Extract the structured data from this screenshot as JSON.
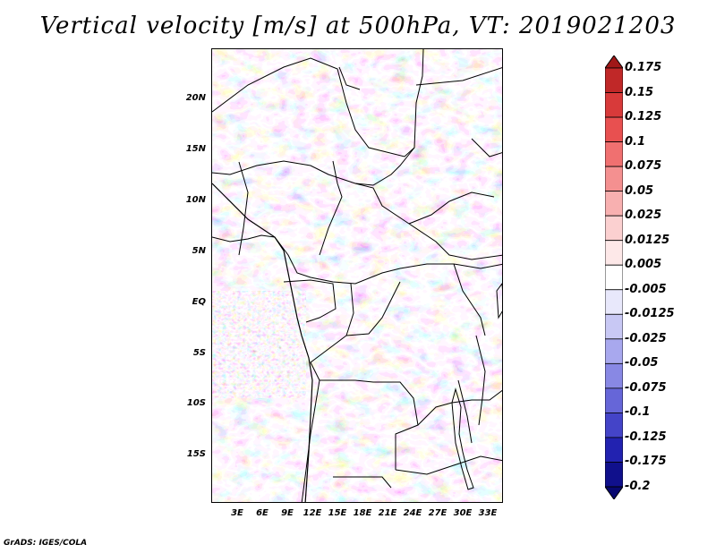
{
  "title": "Vertical velocity [m/s] at 500hPa, VT: 2019021203",
  "credit": "GrADS: IGES/COLA",
  "map": {
    "lat_labels": [
      "20N",
      "15N",
      "10N",
      "5N",
      "EQ",
      "5S",
      "10S",
      "15S"
    ],
    "lon_labels": [
      "3E",
      "6E",
      "9E",
      "12E",
      "15E",
      "18E",
      "21E",
      "24E",
      "27E",
      "30E",
      "33E"
    ]
  },
  "colorbar": {
    "levels": [
      "0.175",
      "0.15",
      "0.125",
      "0.1",
      "0.075",
      "0.05",
      "0.025",
      "0.0125",
      "0.005",
      "-0.005",
      "-0.0125",
      "-0.025",
      "-0.05",
      "-0.075",
      "-0.1",
      "-0.125",
      "-0.175",
      "-0.2"
    ],
    "colors": [
      "#a01818",
      "#c02828",
      "#d83a3a",
      "#e85050",
      "#f07070",
      "#f49090",
      "#f8b0b0",
      "#fbd0d0",
      "#fde8e8",
      "#ffffff",
      "#e8e8fb",
      "#c8c8f4",
      "#a8a8ee",
      "#8888e4",
      "#6666d8",
      "#4444c8",
      "#2222b0",
      "#10108c",
      "#080870"
    ]
  }
}
